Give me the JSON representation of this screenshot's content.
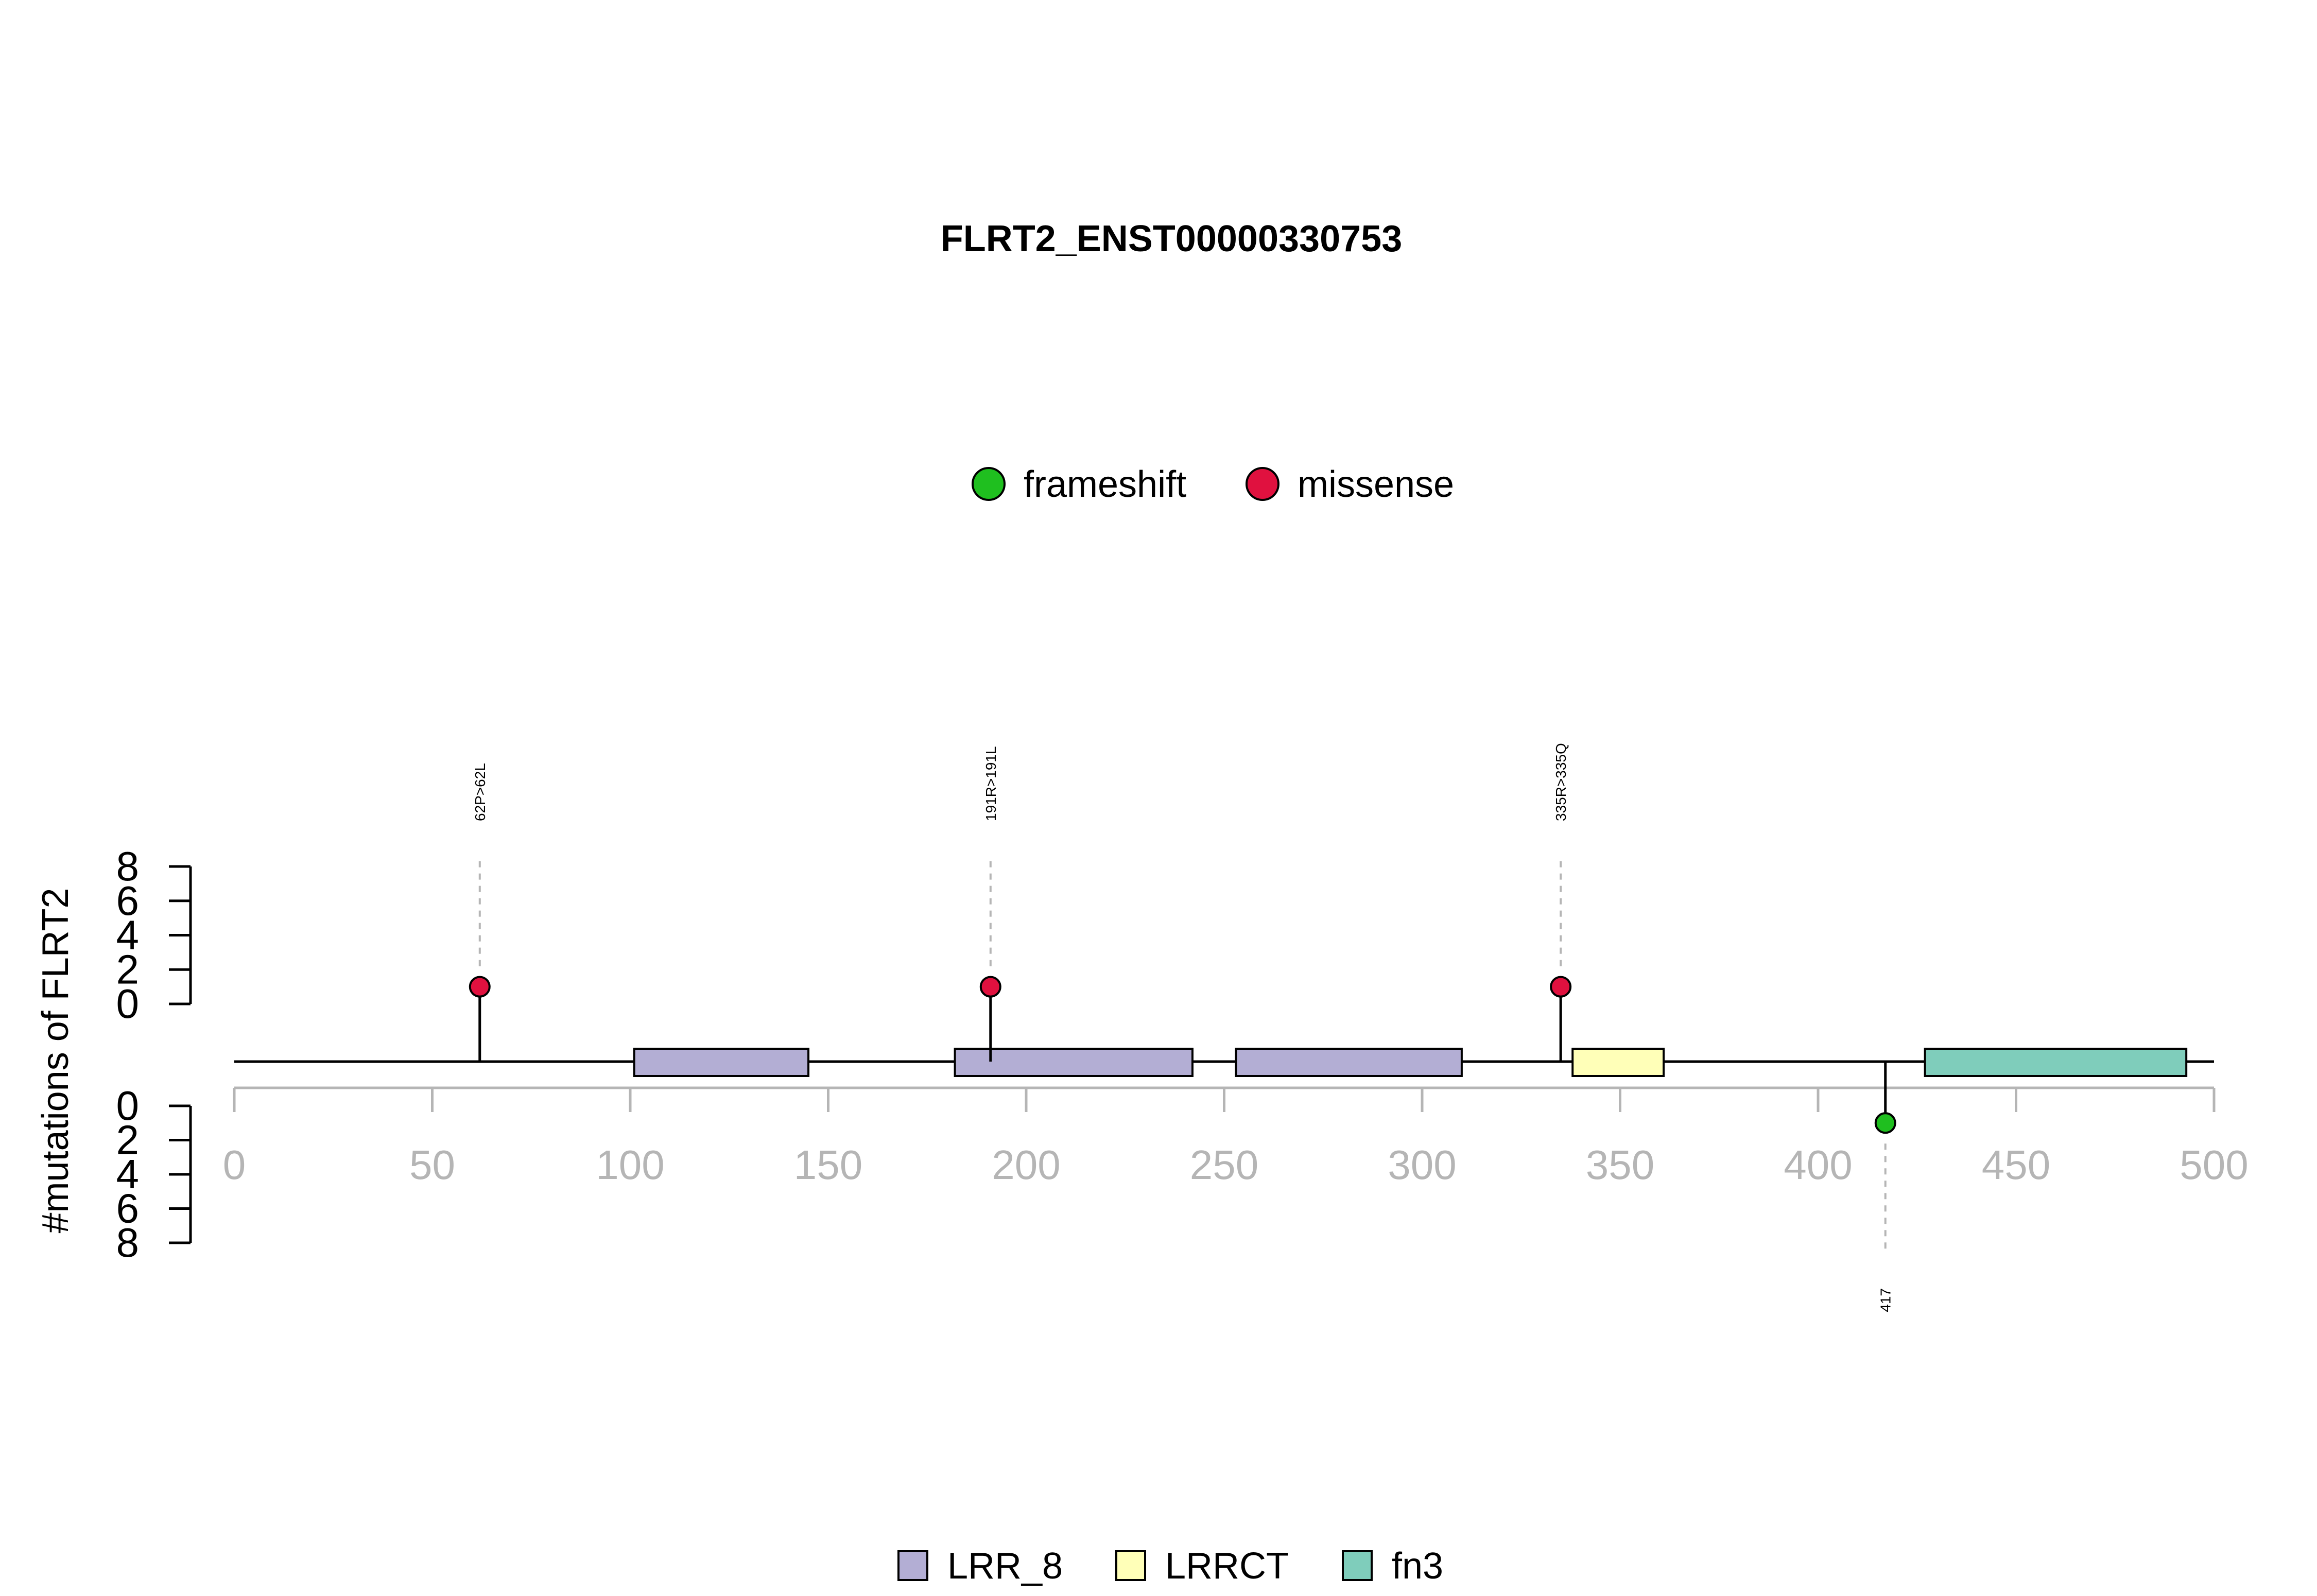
{
  "chart_data": {
    "type": "lollipop",
    "title": "FLRT2_ENST00000330753",
    "ylabel": "#mutations of FLRT2",
    "protein_length": 500,
    "xlim": [
      0,
      500
    ],
    "x_ticks": [
      0,
      50,
      100,
      150,
      200,
      250,
      300,
      350,
      400,
      450,
      500
    ],
    "y_ticks": [
      0,
      2,
      4,
      6,
      8
    ],
    "ylim": [
      0,
      8
    ],
    "mutation_legend": [
      {
        "label": "frameshift",
        "color": "#1fbf1f"
      },
      {
        "label": "missense",
        "color": "#e0113f"
      }
    ],
    "domain_legend": [
      {
        "label": "LRR_8",
        "color": "#b3aed4"
      },
      {
        "label": "LRRCT",
        "color": "#ffffb8"
      },
      {
        "label": "fn3",
        "color": "#7fcdbb"
      }
    ],
    "domains": [
      {
        "name": "LRR_8",
        "start": 101,
        "end": 145
      },
      {
        "name": "LRR_8",
        "start": 182,
        "end": 242
      },
      {
        "name": "LRR_8",
        "start": 253,
        "end": 310
      },
      {
        "name": "LRRCT",
        "start": 338,
        "end": 361
      },
      {
        "name": "fn3",
        "start": 427,
        "end": 493
      }
    ],
    "mutations": [
      {
        "position": 62,
        "count": 1,
        "type": "missense",
        "label": "62P>62L",
        "side": "top"
      },
      {
        "position": 191,
        "count": 1,
        "type": "missense",
        "label": "191R>191L",
        "side": "top"
      },
      {
        "position": 335,
        "count": 1,
        "type": "missense",
        "label": "335R>335Q",
        "side": "top"
      },
      {
        "position": 417,
        "count": 1,
        "type": "frameshift",
        "label": "417",
        "side": "bottom"
      }
    ]
  }
}
